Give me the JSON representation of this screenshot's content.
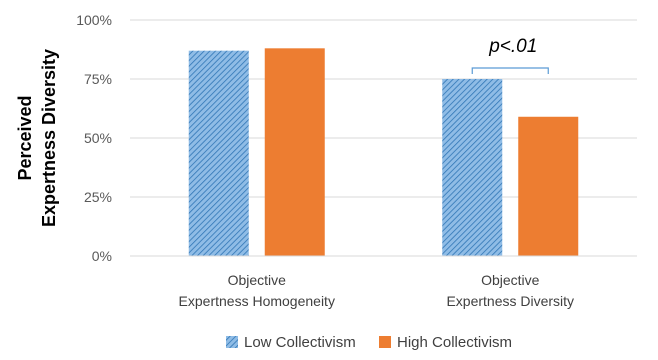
{
  "chart_data": {
    "type": "bar",
    "ylabel": [
      "Perceived",
      "Expertness Diversity"
    ],
    "categories": [
      [
        "Objective",
        "Expertness Homogeneity"
      ],
      [
        "Objective",
        "Expertness Diversity"
      ]
    ],
    "series": [
      {
        "name": "Low Collectivism",
        "values": [
          87,
          75
        ],
        "color": "#5b9bd5",
        "pattern": "diagonal-hatch"
      },
      {
        "name": "High Collectivism",
        "values": [
          88,
          59
        ],
        "color": "#ed7d31",
        "pattern": "solid"
      }
    ],
    "yticks": [
      "0%",
      "25%",
      "50%",
      "75%",
      "100%"
    ],
    "ylim": [
      0,
      100
    ],
    "grid": true,
    "annotation": {
      "text": "p<.01",
      "category_index": 1
    },
    "legend_position": "bottom"
  }
}
